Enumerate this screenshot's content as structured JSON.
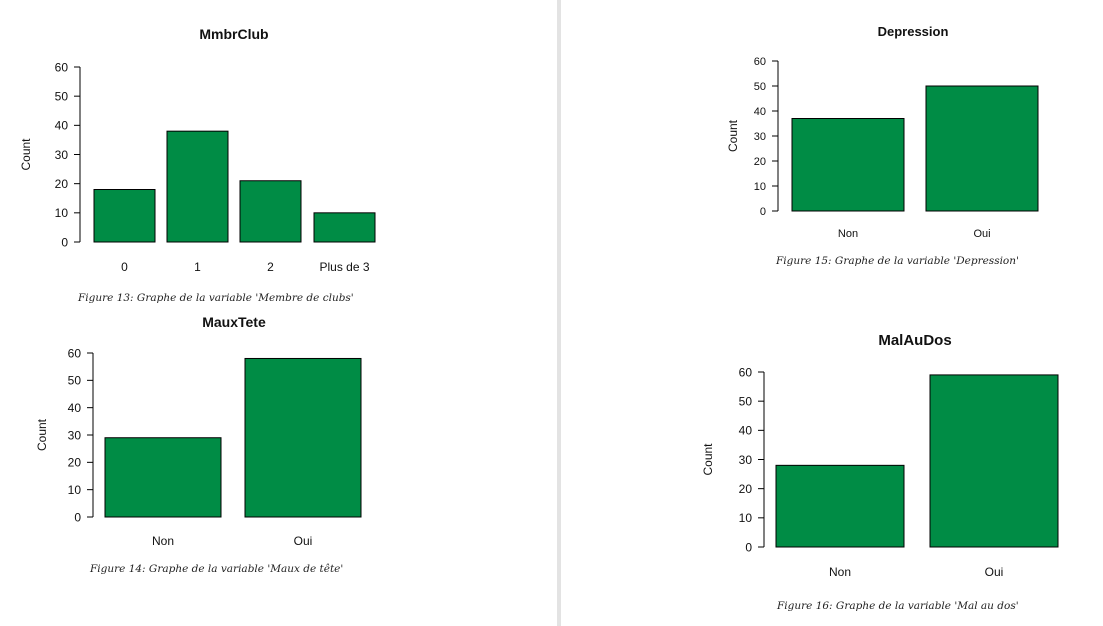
{
  "colors": {
    "bar_fill": "#008C45",
    "bar_stroke": "#000000"
  },
  "charts": [
    {
      "chart_data": {
        "type": "bar",
        "title": "MmbrClub",
        "ylabel": "Count",
        "categories": [
          "0",
          "1",
          "2",
          "Plus de 3"
        ],
        "values": [
          18,
          38,
          21,
          10
        ],
        "yticks": [
          0,
          10,
          20,
          30,
          40,
          50,
          60
        ],
        "ylim": [
          0,
          60
        ],
        "grid": false
      },
      "caption": "Figure 13: Graphe de la variable 'Membre de clubs'"
    },
    {
      "chart_data": {
        "type": "bar",
        "title": "MauxTete",
        "ylabel": "Count",
        "categories": [
          "Non",
          "Oui"
        ],
        "values": [
          29,
          58
        ],
        "yticks": [
          0,
          10,
          20,
          30,
          40,
          50,
          60
        ],
        "ylim": [
          0,
          60
        ],
        "grid": false
      },
      "caption": "Figure 14: Graphe de la variable 'Maux de tête'"
    },
    {
      "chart_data": {
        "type": "bar",
        "title": "Depression",
        "ylabel": "Count",
        "categories": [
          "Non",
          "Oui"
        ],
        "values": [
          37,
          50
        ],
        "yticks": [
          0,
          10,
          20,
          30,
          40,
          50,
          60
        ],
        "ylim": [
          0,
          60
        ],
        "grid": false
      },
      "caption": "Figure 15: Graphe de la variable 'Depression'"
    },
    {
      "chart_data": {
        "type": "bar",
        "title": "MalAuDos",
        "ylabel": "Count",
        "categories": [
          "Non",
          "Oui"
        ],
        "values": [
          28,
          59
        ],
        "yticks": [
          0,
          10,
          20,
          30,
          40,
          50,
          60
        ],
        "ylim": [
          0,
          60
        ],
        "grid": false
      },
      "caption": "Figure 16: Graphe de la variable 'Mal au dos'"
    }
  ]
}
